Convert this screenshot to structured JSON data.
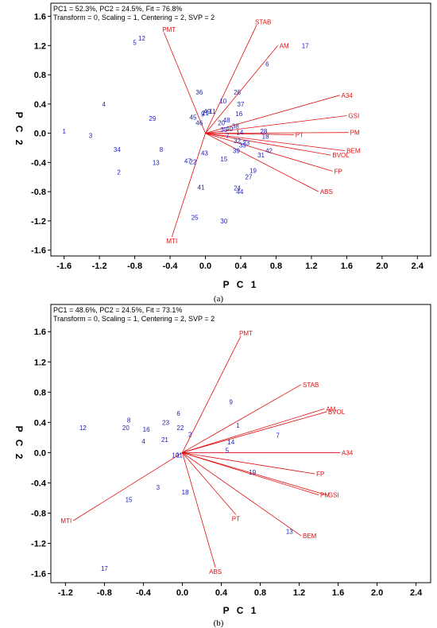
{
  "chart_data": [
    {
      "type": "scatter",
      "header_line1": "PC1 = 52.3%, PC2 = 24.5%, Fit = 76.8%",
      "header_line2": "Transform = 0, Scaling = 1, Centering = 2, SVP = 2",
      "xlabel": "P C 1",
      "ylabel": "P C 2",
      "caption": "(a)",
      "xlim": [
        -1.75,
        2.55
      ],
      "ylim": [
        -1.68,
        1.78
      ],
      "xticks": [
        -1.6,
        -1.2,
        -0.8,
        -0.4,
        0.0,
        0.4,
        0.8,
        1.2,
        1.6,
        2.0,
        2.4
      ],
      "yticks": [
        1.6,
        1.2,
        0.8,
        0.4,
        0.0,
        -0.4,
        -0.8,
        -1.2,
        -1.6
      ],
      "vectors": [
        {
          "label": "STAB",
          "x": 0.58,
          "y": 1.48
        },
        {
          "label": "PMT",
          "x": -0.47,
          "y": 1.38
        },
        {
          "label": "AM",
          "x": 0.82,
          "y": 1.2
        },
        {
          "label": "A34",
          "x": 1.52,
          "y": 0.52
        },
        {
          "label": "GSI",
          "x": 1.6,
          "y": 0.24
        },
        {
          "label": "PM",
          "x": 1.62,
          "y": 0.01
        },
        {
          "label": "PT",
          "x": 1.0,
          "y": -0.02
        },
        {
          "label": "BEM",
          "x": 1.58,
          "y": -0.24
        },
        {
          "label": "BVOL",
          "x": 1.42,
          "y": -0.3
        },
        {
          "label": "FP",
          "x": 1.44,
          "y": -0.52
        },
        {
          "label": "ABS",
          "x": 1.28,
          "y": -0.8
        },
        {
          "label": "MTI",
          "x": -0.38,
          "y": -1.42
        }
      ],
      "points": [
        {
          "label": "1",
          "x": -1.6,
          "y": 0.03
        },
        {
          "label": "2",
          "x": -0.98,
          "y": -0.53
        },
        {
          "label": "3",
          "x": -1.3,
          "y": -0.03
        },
        {
          "label": "4",
          "x": -1.15,
          "y": 0.4
        },
        {
          "label": "5",
          "x": -0.8,
          "y": 1.24
        },
        {
          "label": "6",
          "x": 0.7,
          "y": 0.95
        },
        {
          "label": "7",
          "x": 0.25,
          "y": -0.03
        },
        {
          "label": "8",
          "x": -0.5,
          "y": -0.22
        },
        {
          "label": "9",
          "x": -0.03,
          "y": 0.26
        },
        {
          "label": "10",
          "x": 0.2,
          "y": 0.44
        },
        {
          "label": "11",
          "x": 0.08,
          "y": 0.3
        },
        {
          "label": "12",
          "x": -0.72,
          "y": 1.3
        },
        {
          "label": "13",
          "x": -0.56,
          "y": -0.4
        },
        {
          "label": "14",
          "x": 0.39,
          "y": 0.01
        },
        {
          "label": "15",
          "x": 0.21,
          "y": -0.35
        },
        {
          "label": "16",
          "x": 0.38,
          "y": 0.27
        },
        {
          "label": "17",
          "x": 1.13,
          "y": 1.2
        },
        {
          "label": "18",
          "x": 0.68,
          "y": -0.04
        },
        {
          "label": "19",
          "x": 0.54,
          "y": -0.51
        },
        {
          "label": "20",
          "x": 0.18,
          "y": 0.14
        },
        {
          "label": "21",
          "x": 0.0,
          "y": 0.28
        },
        {
          "label": "22",
          "x": -0.14,
          "y": -0.39
        },
        {
          "label": "23",
          "x": 0.46,
          "y": -0.13
        },
        {
          "label": "24",
          "x": 0.36,
          "y": -0.75
        },
        {
          "label": "25",
          "x": -0.12,
          "y": -1.15
        },
        {
          "label": "26",
          "x": 0.36,
          "y": 0.56
        },
        {
          "label": "27",
          "x": 0.49,
          "y": -0.6
        },
        {
          "label": "28",
          "x": 0.66,
          "y": 0.03
        },
        {
          "label": "29",
          "x": -0.6,
          "y": 0.2
        },
        {
          "label": "30",
          "x": 0.21,
          "y": -1.2
        },
        {
          "label": "31",
          "x": 0.63,
          "y": -0.3
        },
        {
          "label": "32",
          "x": 0.36,
          "y": -0.1
        },
        {
          "label": "33",
          "x": 0.42,
          "y": -0.16
        },
        {
          "label": "34",
          "x": -1.0,
          "y": -0.22
        },
        {
          "label": "35",
          "x": 0.21,
          "y": 0.05
        },
        {
          "label": "36",
          "x": -0.07,
          "y": 0.56
        },
        {
          "label": "37",
          "x": 0.4,
          "y": 0.4
        },
        {
          "label": "38",
          "x": 0.34,
          "y": 0.1
        },
        {
          "label": "39",
          "x": 0.35,
          "y": -0.24
        },
        {
          "label": "40",
          "x": 0.27,
          "y": 0.06
        },
        {
          "label": "41",
          "x": -0.05,
          "y": -0.74
        },
        {
          "label": "42",
          "x": 0.72,
          "y": -0.24
        },
        {
          "label": "43",
          "x": -0.01,
          "y": -0.27
        },
        {
          "label": "44",
          "x": 0.39,
          "y": -0.8
        },
        {
          "label": "45",
          "x": -0.14,
          "y": 0.22
        },
        {
          "label": "46",
          "x": -0.07,
          "y": 0.14
        },
        {
          "label": "47",
          "x": -0.2,
          "y": -0.38
        },
        {
          "label": "48",
          "x": 0.24,
          "y": 0.18
        },
        {
          "label": "49",
          "x": 0.02,
          "y": 0.3
        }
      ]
    },
    {
      "type": "scatter",
      "header_line1": "PC1 = 48.6%, PC2 = 24.5%, Fit = 73.1%",
      "header_line2": "Transform = 0, Scaling = 1, Centering = 2, SVP = 2",
      "xlabel": "P C 1",
      "ylabel": "P C 2",
      "caption": "(b)",
      "xlim": [
        -1.35,
        2.55
      ],
      "ylim": [
        -1.72,
        1.96
      ],
      "xticks": [
        -1.2,
        -0.8,
        -0.4,
        0.0,
        0.4,
        0.8,
        1.2,
        1.6,
        2.0,
        2.4
      ],
      "yticks": [
        1.6,
        1.2,
        0.8,
        0.4,
        0.0,
        -0.4,
        -0.8,
        -1.2,
        -1.6
      ],
      "vectors": [
        {
          "label": "PMT",
          "x": 0.6,
          "y": 1.54
        },
        {
          "label": "STAB",
          "x": 1.22,
          "y": 0.9
        },
        {
          "label": "AM",
          "x": 1.46,
          "y": 0.58
        },
        {
          "label": "BVOL",
          "x": 1.48,
          "y": 0.54
        },
        {
          "label": "A34",
          "x": 1.62,
          "y": 0.0
        },
        {
          "label": "FP",
          "x": 1.36,
          "y": -0.28
        },
        {
          "label": "PM",
          "x": 1.4,
          "y": -0.56
        },
        {
          "label": "GSI",
          "x": 1.48,
          "y": -0.56
        },
        {
          "label": "BEM",
          "x": 1.22,
          "y": -1.1
        },
        {
          "label": "PT",
          "x": 0.55,
          "y": -0.82
        },
        {
          "label": "ABS",
          "x": 0.34,
          "y": -1.52
        },
        {
          "label": "MTI",
          "x": -1.12,
          "y": -0.9
        }
      ],
      "points": [
        {
          "label": "1",
          "x": 0.57,
          "y": 0.36
        },
        {
          "label": "2",
          "x": 0.08,
          "y": 0.24
        },
        {
          "label": "3",
          "x": -0.25,
          "y": -0.46
        },
        {
          "label": "4",
          "x": -0.4,
          "y": 0.15
        },
        {
          "label": "5",
          "x": 0.46,
          "y": 0.03
        },
        {
          "label": "6",
          "x": -0.04,
          "y": 0.52
        },
        {
          "label": "7",
          "x": 0.98,
          "y": 0.23
        },
        {
          "label": "8",
          "x": -0.55,
          "y": 0.43
        },
        {
          "label": "9",
          "x": 0.5,
          "y": 0.67
        },
        {
          "label": "10",
          "x": -0.07,
          "y": -0.03
        },
        {
          "label": "11",
          "x": -0.03,
          "y": -0.03
        },
        {
          "label": "12",
          "x": -1.02,
          "y": 0.33
        },
        {
          "label": "13",
          "x": 1.1,
          "y": -1.04
        },
        {
          "label": "14",
          "x": 0.5,
          "y": 0.14
        },
        {
          "label": "15",
          "x": -0.55,
          "y": -0.62
        },
        {
          "label": "16",
          "x": -0.37,
          "y": 0.31
        },
        {
          "label": "17",
          "x": -0.8,
          "y": -1.53
        },
        {
          "label": "18",
          "x": 0.03,
          "y": -0.52
        },
        {
          "label": "19",
          "x": 0.72,
          "y": -0.26
        },
        {
          "label": "20",
          "x": -0.58,
          "y": 0.33
        },
        {
          "label": "21",
          "x": -0.18,
          "y": 0.17
        },
        {
          "label": "22",
          "x": -0.02,
          "y": 0.33
        },
        {
          "label": "23",
          "x": -0.17,
          "y": 0.4
        }
      ]
    }
  ]
}
